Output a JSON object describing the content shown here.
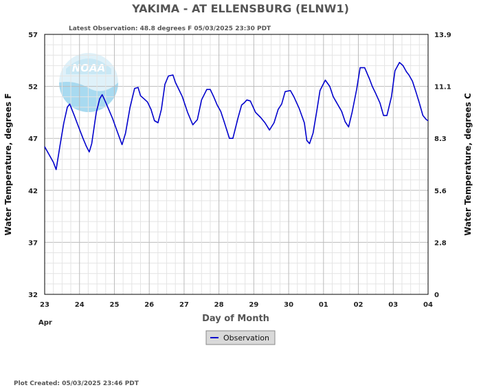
{
  "chart_data": {
    "type": "line",
    "title": "YAKIMA - AT ELLENSBURG  (ELNW1)",
    "subtitle": "Latest Observation: 48.8 degrees F  05/03/2025 23:30 PDT",
    "xlabel": "Day of Month",
    "ylabel": "Water Temperature, degrees F",
    "ylabel_right": "Water Temperature, degrees C",
    "ylim": [
      32,
      57
    ],
    "ylim_right": [
      0,
      13.9
    ],
    "y_ticks": [
      "32",
      "37",
      "42",
      "47",
      "52",
      "57"
    ],
    "y_ticks_right": [
      "0",
      "2.8",
      "5.6",
      "8.3",
      "11.1",
      "13.9"
    ],
    "x_ticks": [
      "23",
      "24",
      "25",
      "26",
      "27",
      "28",
      "29",
      "30",
      "01",
      "02",
      "03",
      "04"
    ],
    "x_month_label": "Apr",
    "grid": true,
    "legend_position": "bottom-center",
    "line_color": "#0000cc",
    "series": [
      {
        "name": "Observation",
        "x_units": "days since Apr 23 00:00",
        "x": [
          0.0,
          0.15,
          0.25,
          0.33,
          0.45,
          0.55,
          0.65,
          0.72,
          0.85,
          0.95,
          1.1,
          1.2,
          1.28,
          1.35,
          1.48,
          1.58,
          1.65,
          1.72,
          1.85,
          1.95,
          2.1,
          2.22,
          2.32,
          2.45,
          2.58,
          2.68,
          2.75,
          2.85,
          2.95,
          3.05,
          3.15,
          3.25,
          3.35,
          3.45,
          3.55,
          3.68,
          3.75,
          3.85,
          3.95,
          4.1,
          4.25,
          4.38,
          4.5,
          4.65,
          4.75,
          4.85,
          4.95,
          5.05,
          5.15,
          5.3,
          5.4,
          5.55,
          5.65,
          5.72,
          5.8,
          5.9,
          6.05,
          6.2,
          6.32,
          6.45,
          6.58,
          6.7,
          6.8,
          6.9,
          7.05,
          7.15,
          7.3,
          7.45,
          7.52,
          7.6,
          7.7,
          7.8,
          7.9,
          8.05,
          8.18,
          8.28,
          8.4,
          8.52,
          8.62,
          8.72,
          8.82,
          8.95,
          9.05,
          9.18,
          9.32,
          9.4,
          9.5,
          9.62,
          9.72,
          9.82,
          9.95,
          10.05,
          10.18,
          10.28,
          10.38,
          10.45,
          10.55,
          10.65,
          10.75,
          10.85,
          10.95,
          11.0
        ],
        "values": [
          46.2,
          45.3,
          44.7,
          44.0,
          46.5,
          48.5,
          50.0,
          50.3,
          49.2,
          48.3,
          47.0,
          46.2,
          45.7,
          46.5,
          49.5,
          50.8,
          51.2,
          50.7,
          49.7,
          48.9,
          47.5,
          46.4,
          47.5,
          50.0,
          51.8,
          51.9,
          51.1,
          50.8,
          50.5,
          49.8,
          48.7,
          48.5,
          49.8,
          52.2,
          53.0,
          53.1,
          52.4,
          51.7,
          51.0,
          49.5,
          48.3,
          48.8,
          50.7,
          51.7,
          51.7,
          51.0,
          50.2,
          49.6,
          48.6,
          47.0,
          47.0,
          49.0,
          50.2,
          50.4,
          50.7,
          50.6,
          49.5,
          49.0,
          48.5,
          47.8,
          48.5,
          49.8,
          50.3,
          51.5,
          51.6,
          51.0,
          49.9,
          48.5,
          46.8,
          46.5,
          47.5,
          49.5,
          51.6,
          52.6,
          52.0,
          51.0,
          50.3,
          49.6,
          48.6,
          48.1,
          49.5,
          51.7,
          53.8,
          53.8,
          52.7,
          52.0,
          51.3,
          50.4,
          49.2,
          49.2,
          51.0,
          53.5,
          54.3,
          54.0,
          53.4,
          53.1,
          52.5,
          51.5,
          50.4,
          49.2,
          48.8,
          48.7
        ],
        "latest_value": 48.8
      }
    ],
    "legend": [
      "Observation"
    ],
    "month_tick_index": 0
  },
  "footer": {
    "plot_created": "Plot Created: 05/03/2025 23:46 PDT"
  },
  "logo": {
    "text": "NOAA"
  },
  "colors": {
    "grid": "#bbbbbb",
    "axis": "#000000",
    "logo_bg": "#d8eef7",
    "logo_accent": "#9fd6ee",
    "legend_bg": "#d9d9d9",
    "line": "#0000cc"
  }
}
